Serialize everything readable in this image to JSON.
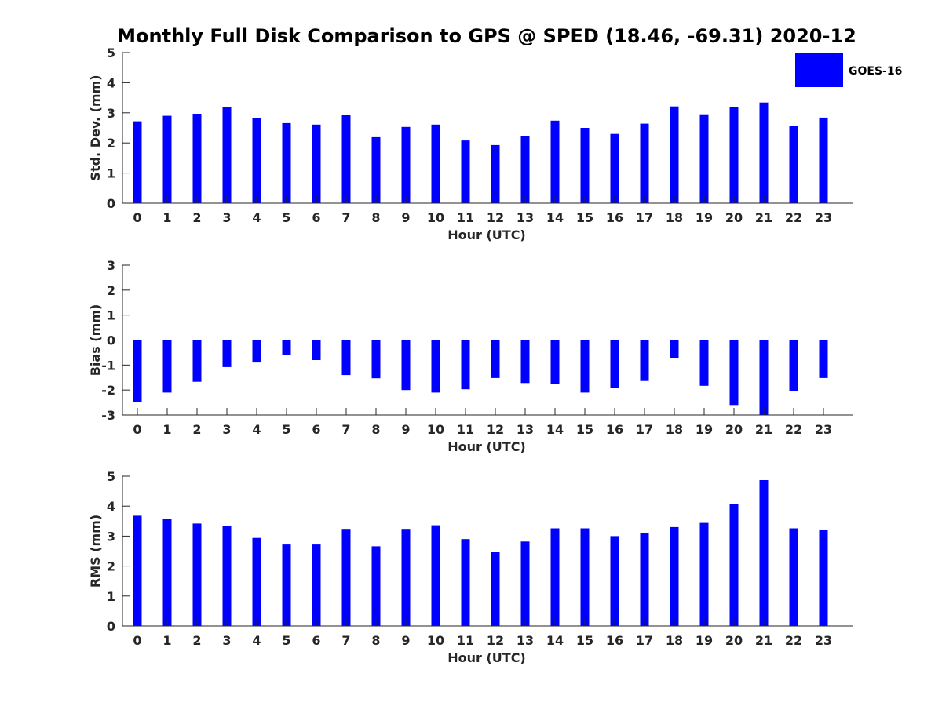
{
  "chart_data": {
    "type": "bar",
    "title": "Monthly Full Disk Comparison to GPS @ SPED (18.46, -69.31) 2020-12",
    "legend": {
      "entries": [
        "GOES-16"
      ],
      "placement": "top-right",
      "color": "#0000ff"
    },
    "bar_color": "#0000ff",
    "categories": [
      "0",
      "1",
      "2",
      "3",
      "4",
      "5",
      "6",
      "7",
      "8",
      "9",
      "10",
      "11",
      "12",
      "13",
      "14",
      "15",
      "16",
      "17",
      "18",
      "19",
      "20",
      "21",
      "22",
      "23"
    ],
    "panels": [
      {
        "id": "std",
        "ylabel": "Std. Dev. (mm)",
        "xlabel": "Hour (UTC)",
        "ylim": [
          0,
          5
        ],
        "yticks": [
          "0",
          "1",
          "2",
          "3",
          "4",
          "5"
        ],
        "zero_line": false,
        "series": [
          {
            "name": "GOES-16",
            "values": [
              2.72,
              2.9,
              2.97,
              3.18,
              2.82,
              2.66,
              2.61,
              2.92,
              2.19,
              2.53,
              2.61,
              2.08,
              1.93,
              2.24,
              2.74,
              2.5,
              2.3,
              2.64,
              3.21,
              2.95,
              3.18,
              3.34,
              2.56,
              2.84
            ]
          }
        ]
      },
      {
        "id": "bias",
        "ylabel": "Bias (mm)",
        "xlabel": "Hour (UTC)",
        "ylim": [
          -3,
          3
        ],
        "yticks": [
          "-3",
          "-2",
          "-1",
          "0",
          "1",
          "2",
          "3"
        ],
        "zero_line": true,
        "series": [
          {
            "name": "GOES-16",
            "values": [
              -2.48,
              -2.1,
              -1.67,
              -1.08,
              -0.9,
              -0.58,
              -0.8,
              -1.4,
              -1.53,
              -2.0,
              -2.1,
              -1.97,
              -1.52,
              -1.72,
              -1.77,
              -2.1,
              -1.93,
              -1.64,
              -0.72,
              -1.83,
              -2.6,
              -3.0,
              -2.03,
              -1.52
            ]
          }
        ]
      },
      {
        "id": "rms",
        "ylabel": "RMS (mm)",
        "xlabel": "Hour (UTC)",
        "ylim": [
          0,
          5
        ],
        "yticks": [
          "0",
          "1",
          "2",
          "3",
          "4",
          "5"
        ],
        "zero_line": false,
        "series": [
          {
            "name": "GOES-16",
            "values": [
              3.68,
              3.58,
              3.42,
              3.34,
              2.94,
              2.72,
              2.72,
              3.24,
              2.66,
              3.24,
              3.36,
              2.9,
              2.46,
              2.82,
              3.26,
              3.26,
              3.0,
              3.1,
              3.3,
              3.44,
              4.08,
              4.87,
              3.26,
              3.21
            ]
          }
        ]
      }
    ]
  }
}
